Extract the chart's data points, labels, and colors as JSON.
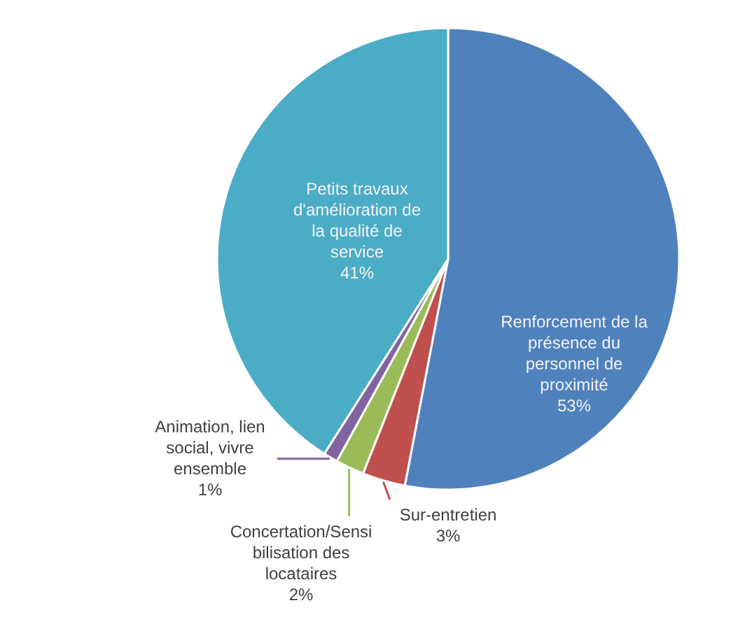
{
  "chart_data": {
    "type": "pie",
    "categories": [
      "Renforcement de la présence du personnel de proximité",
      "Sur-entretien",
      "Concertation/Sensibilisation des locataires",
      "Animation, lien social, vivre ensemble",
      "Petits travaux d'amélioration de la qualité de service"
    ],
    "values": [
      53,
      3,
      2,
      1,
      41
    ],
    "value_labels": [
      "53%",
      "3%",
      "2%",
      "1%",
      "41%"
    ],
    "colors": [
      "#4f81bd",
      "#c0504d",
      "#9bbb59",
      "#8064a2",
      "#4bacc6"
    ]
  }
}
